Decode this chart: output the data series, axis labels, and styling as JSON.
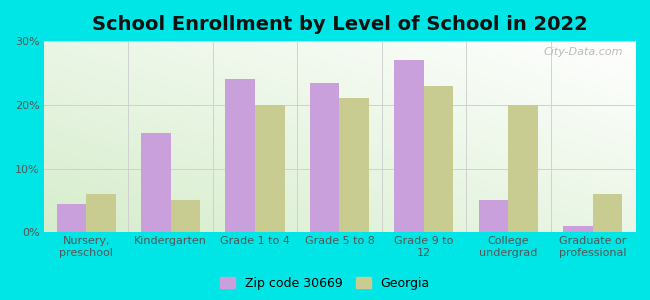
{
  "title": "School Enrollment by Level of School in 2022",
  "categories": [
    "Nursery,\npreschool",
    "Kindergarten",
    "Grade 1 to 4",
    "Grade 5 to 8",
    "Grade 9 to\n12",
    "College\nundergrad",
    "Graduate or\nprofessional"
  ],
  "zip_values": [
    4.5,
    15.5,
    24.0,
    23.5,
    27.0,
    5.0,
    1.0
  ],
  "georgia_values": [
    6.0,
    5.0,
    20.0,
    21.0,
    23.0,
    20.0,
    6.0
  ],
  "zip_color": "#c9a0dc",
  "georgia_color": "#c8cc90",
  "zip_label": "Zip code 30669",
  "georgia_label": "Georgia",
  "background_color": "#00e5e5",
  "ylim": [
    0,
    30
  ],
  "yticks": [
    0,
    10,
    20,
    30
  ],
  "ytick_labels": [
    "0%",
    "10%",
    "20%",
    "30%"
  ],
  "bar_width": 0.35,
  "title_fontsize": 14,
  "tick_fontsize": 8,
  "legend_fontsize": 9,
  "grid_color": "#d0d0d0",
  "watermark_text": "City-Data.com"
}
